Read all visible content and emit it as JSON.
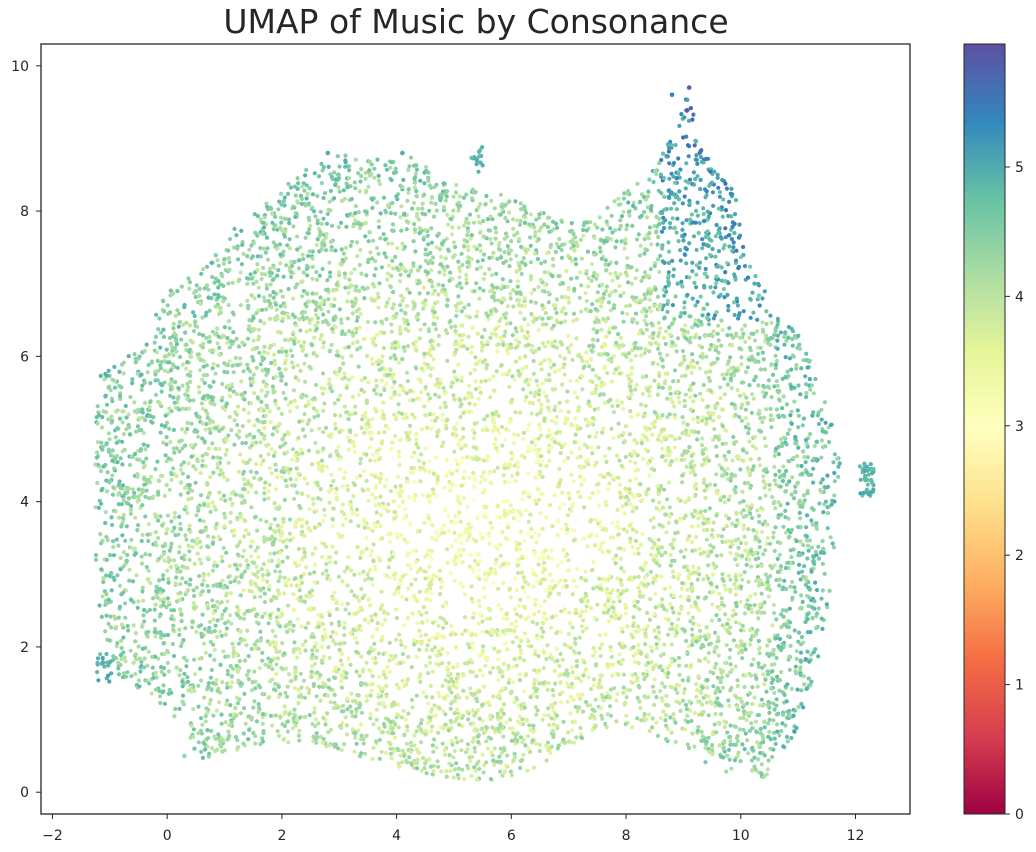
{
  "chart_data": {
    "type": "scatter",
    "title": "UMAP of Music by Consonance",
    "xlabel": "",
    "ylabel": "",
    "xlim": [
      -2.2,
      12.95
    ],
    "ylim": [
      -0.3,
      10.3
    ],
    "x_ticks": [
      "−2",
      "0",
      "2",
      "4",
      "6",
      "8",
      "10",
      "12"
    ],
    "x_tick_values": [
      -2,
      0,
      2,
      4,
      6,
      8,
      10,
      12
    ],
    "y_ticks": [
      "0",
      "2",
      "4",
      "6",
      "8",
      "10"
    ],
    "y_tick_values": [
      0,
      2,
      4,
      6,
      8,
      10
    ],
    "grid": false,
    "colormap": "Spectral",
    "colorbar": {
      "range": [
        0,
        5.95
      ],
      "tick_values": [
        0,
        1,
        2,
        3,
        4,
        5
      ],
      "ticks": [
        "0",
        "1",
        "2",
        "3",
        "4",
        "5"
      ],
      "colors": [
        "#9e0142",
        "#d53e4f",
        "#f46d43",
        "#fdae61",
        "#fee08b",
        "#ffffbf",
        "#e6f598",
        "#abdda4",
        "#66c2a5",
        "#3288bd",
        "#5e4fa2"
      ]
    },
    "point_count_estimate": 14000,
    "sample_points": [
      {
        "x": 9.1,
        "y": 9.7,
        "value": 5.8
      },
      {
        "x": 8.8,
        "y": 9.6,
        "value": 5.5
      },
      {
        "x": 2.8,
        "y": 8.8,
        "value": 5.0
      },
      {
        "x": 4.1,
        "y": 8.8,
        "value": 5.0
      },
      {
        "x": 5.4,
        "y": 8.7,
        "value": 5.0
      },
      {
        "x": 12.2,
        "y": 4.3,
        "value": 4.8
      },
      {
        "x": 11.4,
        "y": 3.3,
        "value": 4.9
      },
      {
        "x": 0.5,
        "y": 6.9,
        "value": 4.2
      },
      {
        "x": 5.5,
        "y": 3.5,
        "value": 3.4
      },
      {
        "x": 6.3,
        "y": 0.6,
        "value": 3.4
      },
      {
        "x": 10.2,
        "y": 0.3,
        "value": 4.0
      },
      {
        "x": 0.3,
        "y": 0.5,
        "value": 4.3
      }
    ]
  }
}
